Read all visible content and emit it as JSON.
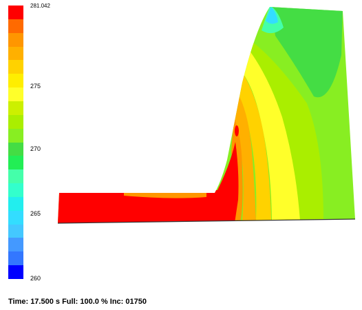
{
  "legend": {
    "max_label": "281.042",
    "tick_labels": [
      "275",
      "270",
      "265",
      "260"
    ],
    "band_colors": [
      "#ff0000",
      "#ff6a00",
      "#ff9600",
      "#ffb000",
      "#ffd200",
      "#ffee00",
      "#ffff2a",
      "#ccf000",
      "#aaee00",
      "#88ee22",
      "#44dd44",
      "#22ee55",
      "#44ffaa",
      "#33ffcc",
      "#22eeee",
      "#33ddff",
      "#44c8ff",
      "#4499ff",
      "#3377ff",
      "#0000ff"
    ]
  },
  "status": {
    "text": "Time: 17.500 s Full: 100.0 % Inc: 01750"
  }
}
